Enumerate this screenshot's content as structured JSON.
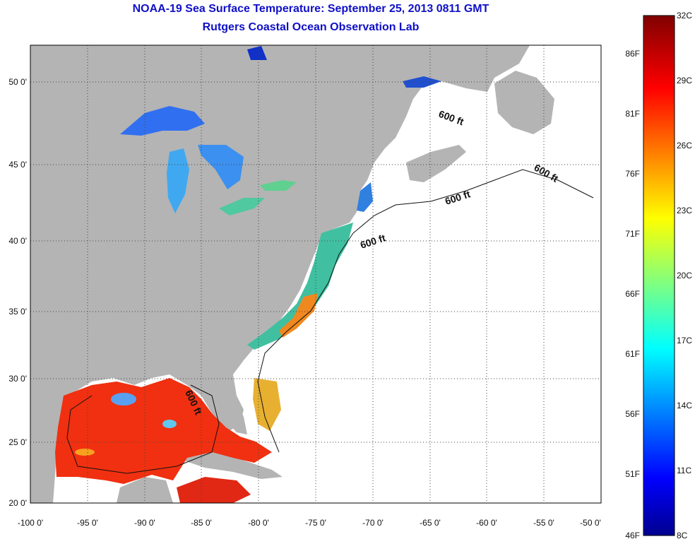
{
  "header": {
    "title": "NOAA-19 Sea Surface Temperature:  September 25, 2013 0811 GMT",
    "subtitle": "Rutgers Coastal Ocean Observation Lab"
  },
  "map": {
    "lon_range": [
      -100,
      -50
    ],
    "lat_range": [
      20,
      52.5
    ],
    "lon_ticks": [
      "-100 0'",
      "-95 0'",
      "-90 0'",
      "-85 0'",
      "-80 0'",
      "-75 0'",
      "-70 0'",
      "-65 0'",
      "-60 0'",
      "-55 0'",
      "-50 0'"
    ],
    "lat_ticks": [
      "50 0'",
      "45 0'",
      "40 0'",
      "35 0'",
      "30 0'",
      "25 0'",
      "20 0'"
    ],
    "contour_label": "600 ft",
    "colors": {
      "land": "#b4b4b4",
      "ocean_nodata": "#ffffff",
      "gulf_warm": "#f03010",
      "great_lakes": "#3070f0"
    }
  },
  "colorbar": {
    "celsius_labels": [
      "32C",
      "29C",
      "26C",
      "23C",
      "20C",
      "17C",
      "14C",
      "11C",
      "8C"
    ],
    "fahrenheit_labels": [
      "86F",
      "81F",
      "76F",
      "71F",
      "66F",
      "61F",
      "56F",
      "51F",
      "46F"
    ],
    "range_celsius": [
      8,
      32
    ],
    "colormap": "jet"
  }
}
